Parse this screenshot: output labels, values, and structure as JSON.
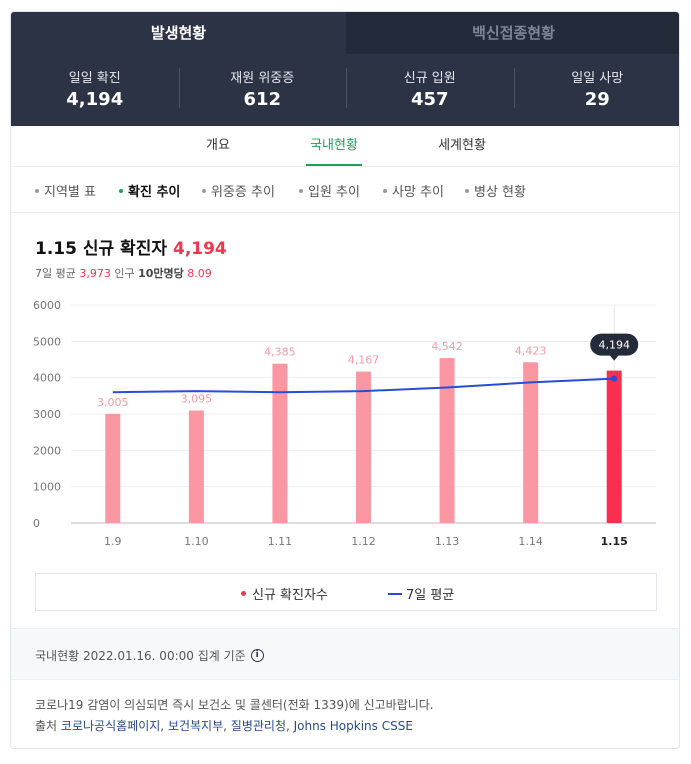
{
  "top_tabs": [
    "발생현황",
    "백신접종현황"
  ],
  "stats": [
    {
      "label": "일일 확진",
      "value": "4,194"
    },
    {
      "label": "재원 위중증",
      "value": "612"
    },
    {
      "label": "신규 입원",
      "value": "457"
    },
    {
      "label": "일일 사망",
      "value": "29"
    }
  ],
  "sub_tabs": [
    "개요",
    "국내현황",
    "세계현황"
  ],
  "filters": [
    "지역별 표",
    "확진 추이",
    "위중증 추이",
    "입원 추이",
    "사망 추이",
    "병상 현황"
  ],
  "headline": {
    "title": "1.15 신규 확진자",
    "value": "4,194"
  },
  "subline": {
    "avg_label": "7일 평균",
    "avg_value": "3,973",
    "pop_label_pre": "인구 ",
    "pop_label_bold": "10만명당",
    "pop_value": "8.09"
  },
  "chart_data": {
    "type": "bar",
    "categories": [
      "1.9",
      "1.10",
      "1.11",
      "1.12",
      "1.13",
      "1.14",
      "1.15"
    ],
    "series": [
      {
        "name": "신규 확진자수",
        "values": [
          3005,
          3095,
          4385,
          4167,
          4542,
          4423,
          4194
        ],
        "labels": [
          "3,005",
          "3,095",
          "4,385",
          "4,167",
          "4,542",
          "4,423",
          "4,194"
        ]
      },
      {
        "name": "7일 평균",
        "type": "line",
        "values": [
          3600,
          3630,
          3600,
          3630,
          3730,
          3870,
          3973
        ]
      }
    ],
    "yticks": [
      "0",
      "1000",
      "2000",
      "3000",
      "4000",
      "5000",
      "6000"
    ],
    "ylim": [
      0,
      6000
    ],
    "highlight_index": 6,
    "colors": {
      "bar": "#fb96a3",
      "bar_highlight": "#f92f4f",
      "line": "#2a4bd7",
      "label": "#f49aa6",
      "tooltip_bg": "#232a3a"
    },
    "grid": true
  },
  "legend": {
    "bars": "신규 확진자수",
    "line": "7일 평균"
  },
  "footer": {
    "text": "국내현황 2022.01.16. 00:00 집계 기준",
    "info_icon": "i"
  },
  "notice": "코로나19 감염이 의심되면 즉시 보건소 및 콜센터(전화 1339)에 신고바랍니다.",
  "source": {
    "prefix": "출처",
    "links": [
      "코로나공식홈페이지",
      "보건복지부",
      "질병관리청",
      "Johns Hopkins CSSE"
    ]
  }
}
